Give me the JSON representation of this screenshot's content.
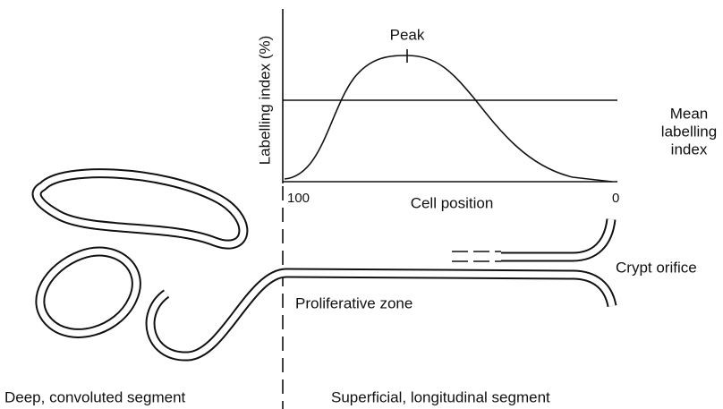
{
  "graph": {
    "y_axis_label": "Labelling index (%)",
    "peak_label": "Peak",
    "mean_label": [
      "Mean",
      "labelling",
      "index"
    ],
    "x_axis_label": "Cell position",
    "x_start": "100",
    "x_end": "0"
  },
  "labels": {
    "crypt_orifice": "Crypt orifice",
    "proliferative_zone": "Proliferative zone",
    "deep_segment": "Deep, convoluted segment",
    "superficial_segment": "Superficial, longitudinal segment"
  }
}
